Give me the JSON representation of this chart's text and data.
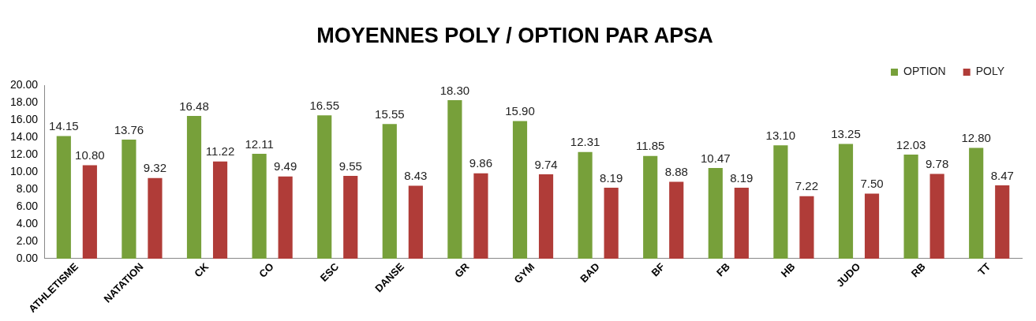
{
  "chart_data": {
    "type": "bar",
    "title": "MOYENNES POLY / OPTION PAR APSA",
    "categories": [
      "ATHLETISME",
      "NATATION",
      "CK",
      "CO",
      "ESC",
      "DANSE",
      "GR",
      "GYM",
      "BAD",
      "BF",
      "FB",
      "HB",
      "JUDO",
      "RB",
      "TT"
    ],
    "series": [
      {
        "name": "OPTION",
        "color": "#77a03a",
        "values": [
          14.15,
          13.76,
          16.48,
          12.11,
          16.55,
          15.55,
          18.3,
          15.9,
          12.31,
          11.85,
          10.47,
          13.1,
          13.25,
          12.03,
          12.8
        ],
        "value_labels": [
          "14.15",
          "13.76",
          "16.48",
          "12.11",
          "16.55",
          "15.55",
          "18.30",
          "15.90",
          "12.31",
          "11.85",
          "10.47",
          "13.10",
          "13.25",
          "12.03",
          "12.80"
        ]
      },
      {
        "name": "POLY",
        "color": "#b03c38",
        "values": [
          10.8,
          9.32,
          11.22,
          9.49,
          9.55,
          8.43,
          9.86,
          9.74,
          8.19,
          8.88,
          8.19,
          7.22,
          7.5,
          9.78,
          8.47
        ],
        "value_labels": [
          "10.80",
          "9.32",
          "11.22",
          "9.49",
          "9.55",
          "8.43",
          "9.86",
          "9.74",
          "8.19",
          "8.88",
          "8.19",
          "7.22",
          "7.50",
          "9.78",
          "8.47"
        ]
      }
    ],
    "ylim": [
      0,
      20
    ],
    "yticks": [
      {
        "value": 0,
        "label": "0.00"
      },
      {
        "value": 2,
        "label": "2.00"
      },
      {
        "value": 4,
        "label": "4.00"
      },
      {
        "value": 6,
        "label": "6.00"
      },
      {
        "value": 8,
        "label": "8.00"
      },
      {
        "value": 10,
        "label": "10.00"
      },
      {
        "value": 12,
        "label": "12.00"
      },
      {
        "value": 14,
        "label": "14.00"
      },
      {
        "value": 16,
        "label": "16.00"
      },
      {
        "value": 18,
        "label": "18.00"
      },
      {
        "value": 20,
        "label": "20.00"
      }
    ],
    "grid": false,
    "legend": "top right"
  }
}
